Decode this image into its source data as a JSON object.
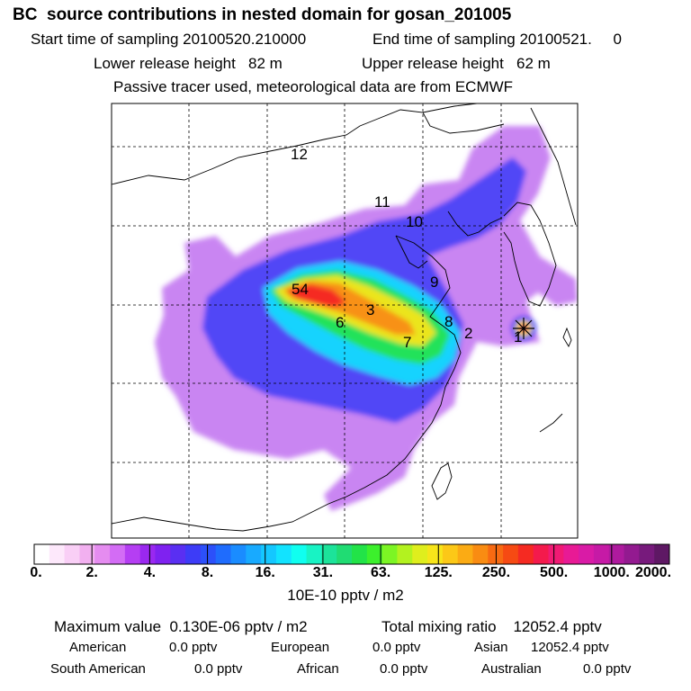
{
  "title": "BC  source contributions in nested domain for gosan_201005",
  "sampling": {
    "start": "Start time of sampling 20100520.210000",
    "end": "End time of sampling 20100521.     0"
  },
  "release": {
    "lower": "Lower release height   82 m",
    "upper": "Upper release height   62 m"
  },
  "tracer_note": "Passive tracer used, meteorological data are from ECMWF",
  "source_region_labels": [
    "12",
    "11",
    "10",
    "9",
    "54",
    "3",
    "6",
    "8",
    "2",
    "7",
    "1"
  ],
  "colorbar": {
    "labels": [
      "0.",
      "2.",
      "4.",
      "8.",
      "16.",
      "31.",
      "63.",
      "125.",
      "250.",
      "500.",
      "1000.",
      "2000."
    ],
    "colors": [
      "#ffffff",
      "#fde8fb",
      "#f9cff6",
      "#f2b0f0",
      "#e58cf0",
      "#d36cf5",
      "#b53ef3",
      "#9a28f0",
      "#7f22f0",
      "#5a2ff2",
      "#3d3cf7",
      "#2c50fa",
      "#1f6cfd",
      "#1a8cff",
      "#18aaff",
      "#14c7ff",
      "#12e3ff",
      "#10fff0",
      "#18f3c4",
      "#1ce39a",
      "#20dc73",
      "#22e348",
      "#3cf02c",
      "#7cf524",
      "#b3f21f",
      "#dfee1d",
      "#f7e51a",
      "#fcc817",
      "#fbab14",
      "#f98c12",
      "#f76a12",
      "#f64a13",
      "#f52a22",
      "#f41a4c",
      "#f11a74",
      "#e81a95",
      "#d91ba6",
      "#c61aa6",
      "#ae1a9e",
      "#931a90",
      "#771a7c",
      "#5e1864"
    ],
    "unit": "10E-10 pptv / m2"
  },
  "summary": {
    "max_value": "Maximum value  0.130E-06 pptv / m2",
    "total_mixing": "Total mixing ratio    12052.4 pptv"
  },
  "regions": {
    "row1": [
      {
        "name": "American",
        "value": "0.0 pptv"
      },
      {
        "name": "European",
        "value": "0.0 pptv"
      },
      {
        "name": "Asian",
        "value": "12052.4 pptv"
      }
    ],
    "row2": [
      {
        "name": "South American",
        "value": "0.0 pptv"
      },
      {
        "name": "African",
        "value": "0.0 pptv"
      },
      {
        "name": "Australian",
        "value": "0.0 pptv"
      }
    ]
  }
}
